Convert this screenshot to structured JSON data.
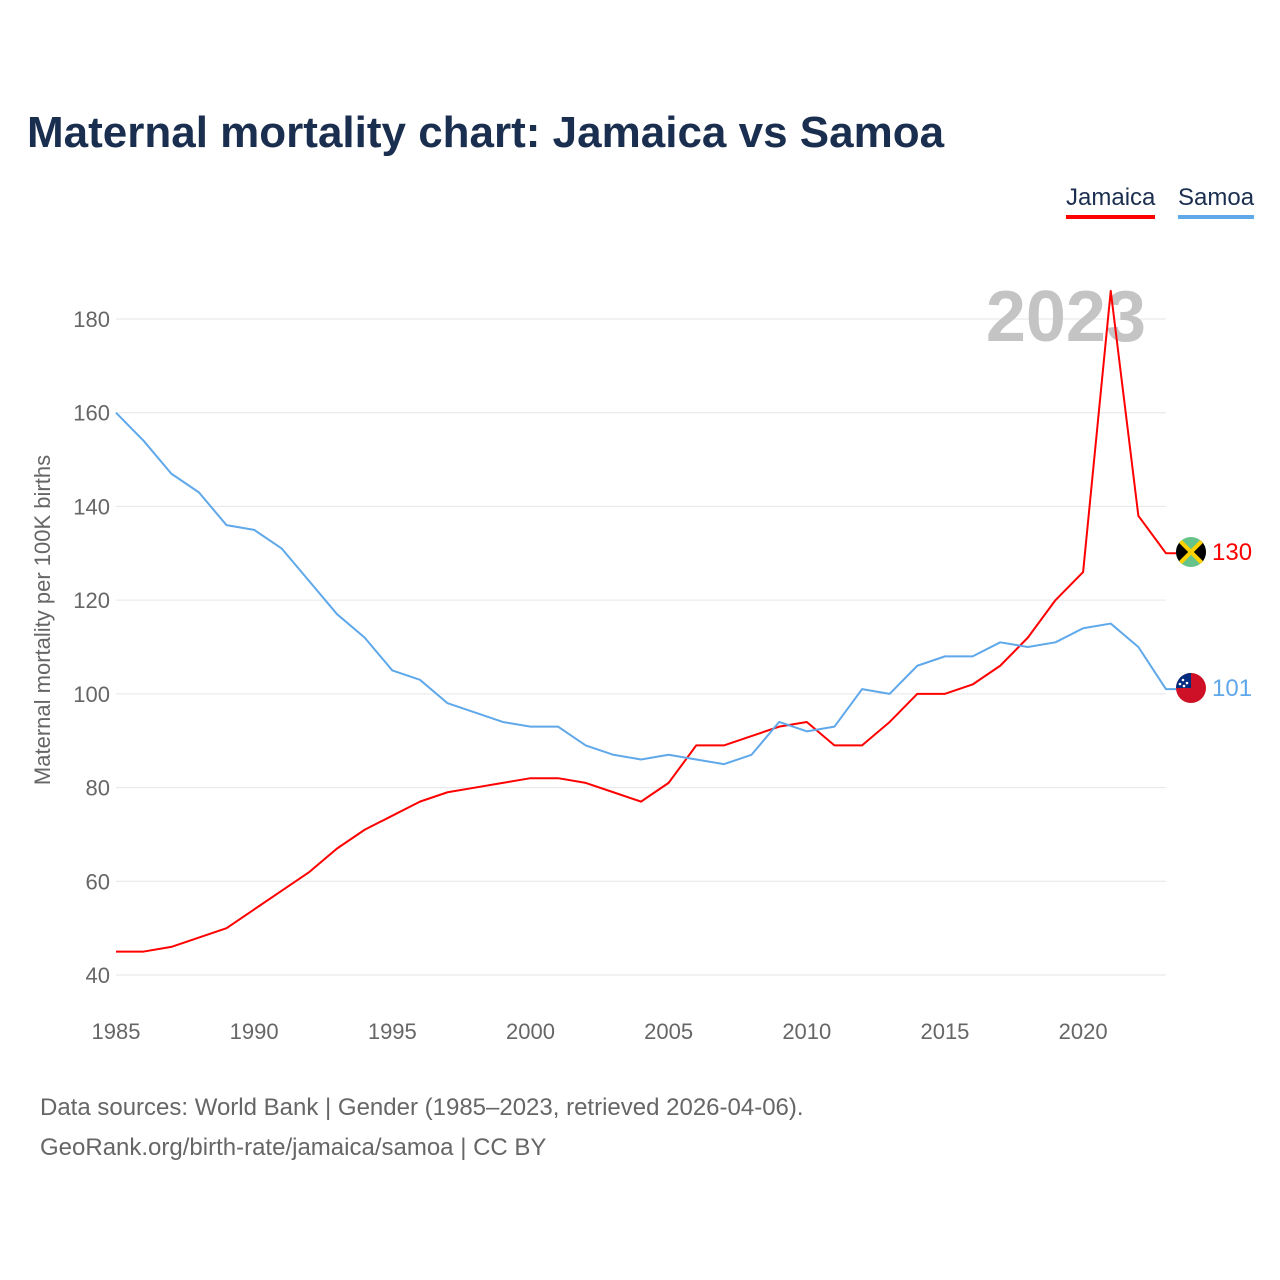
{
  "title": "Maternal mortality chart: Jamaica vs Samoa",
  "legend": [
    {
      "label": "Jamaica",
      "color": "#ff0000"
    },
    {
      "label": "Samoa",
      "color": "#5fa8ea"
    }
  ],
  "source_line1": "Data sources: World Bank | Gender (1985–2023, retrieved 2026-04-06).",
  "source_line2": "GeoRank.org/birth-rate/jamaica/samoa | CC BY",
  "chart_data": {
    "type": "line",
    "title": "Maternal mortality chart: Jamaica vs Samoa",
    "ylabel": "Maternal mortality per 100K births",
    "xlabel": "",
    "year_watermark": "2023",
    "xlim": [
      1985,
      2023
    ],
    "ylim": [
      40,
      190
    ],
    "xticks": [
      1985,
      1990,
      1995,
      2000,
      2005,
      2010,
      2015,
      2020
    ],
    "yticks": [
      40,
      60,
      80,
      100,
      120,
      140,
      160,
      180
    ],
    "grid": true,
    "legend_position": "top-right",
    "x": [
      1985,
      1986,
      1987,
      1988,
      1989,
      1990,
      1991,
      1992,
      1993,
      1994,
      1995,
      1996,
      1997,
      1998,
      1999,
      2000,
      2001,
      2002,
      2003,
      2004,
      2005,
      2006,
      2007,
      2008,
      2009,
      2010,
      2011,
      2012,
      2013,
      2014,
      2015,
      2016,
      2017,
      2018,
      2019,
      2020,
      2021,
      2022,
      2023
    ],
    "series": [
      {
        "name": "Jamaica",
        "color": "#ff0000",
        "end_label": "130",
        "flag": "jamaica-flag",
        "values": [
          45,
          45,
          46,
          48,
          50,
          54,
          58,
          62,
          67,
          71,
          74,
          77,
          79,
          80,
          81,
          82,
          82,
          81,
          79,
          77,
          81,
          89,
          89,
          91,
          93,
          94,
          89,
          89,
          94,
          100,
          100,
          102,
          106,
          112,
          120,
          126,
          186,
          138,
          130
        ]
      },
      {
        "name": "Samoa",
        "color": "#5fa8ea",
        "end_label": "101",
        "flag": "samoa-flag",
        "values": [
          160,
          154,
          147,
          143,
          136,
          135,
          131,
          124,
          117,
          112,
          105,
          103,
          98,
          96,
          94,
          93,
          93,
          89,
          87,
          86,
          87,
          86,
          85,
          87,
          94,
          92,
          93,
          101,
          100,
          106,
          108,
          108,
          111,
          110,
          111,
          114,
          115,
          110,
          101
        ]
      }
    ]
  }
}
